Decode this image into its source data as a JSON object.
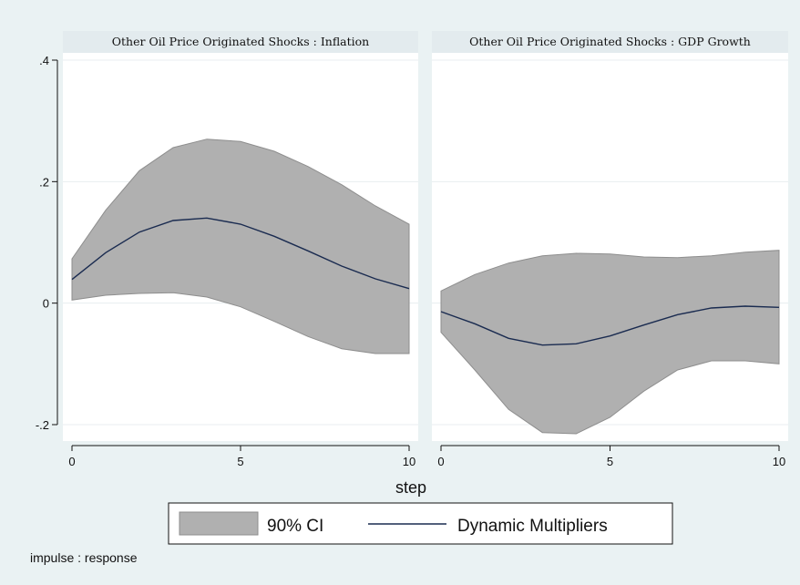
{
  "chart_data": {
    "type": "area",
    "xlabel": "step",
    "ylabel": "",
    "xlim": [
      0,
      10
    ],
    "ylim": [
      -0.22,
      0.41
    ],
    "x_ticks": [
      "0",
      "5",
      "10"
    ],
    "y_ticks": [
      {
        "value": 0.4,
        "label": ".4"
      },
      {
        "value": 0.2,
        "label": ".2"
      },
      {
        "value": 0,
        "label": "0"
      },
      {
        "value": -0.2,
        "label": "-.2"
      }
    ],
    "grid": "horizontal",
    "legend_position": "bottom",
    "note": "impulse : response",
    "colors": {
      "background": "#eaf2f3",
      "plot_background": "#ffffff",
      "ci_fill": "#b0b0b0",
      "ci_stroke": "#8e8e8e",
      "line": "#1a2b50",
      "gridline": "#e8eef0",
      "strip": "#e3ebee"
    },
    "legend": [
      {
        "key": "ci",
        "label": "90% CI"
      },
      {
        "key": "line",
        "label": "Dynamic Multipliers"
      }
    ],
    "panels": [
      {
        "title": "Other Oil Price Originated Shocks : Inflation",
        "x": [
          0,
          1,
          2,
          3,
          4,
          5,
          6,
          7,
          8,
          9,
          10
        ],
        "ci_upper": [
          0.073,
          0.153,
          0.218,
          0.256,
          0.27,
          0.266,
          0.25,
          0.225,
          0.195,
          0.16,
          0.13
        ],
        "ci_lower": [
          0.005,
          0.013,
          0.016,
          0.017,
          0.01,
          -0.006,
          -0.03,
          -0.055,
          -0.075,
          -0.083,
          -0.083
        ],
        "multiplier": [
          0.039,
          0.083,
          0.117,
          0.136,
          0.14,
          0.13,
          0.11,
          0.086,
          0.061,
          0.04,
          0.024
        ]
      },
      {
        "title": "Other Oil Price Originated Shocks : GDP Growth",
        "x": [
          0,
          1,
          2,
          3,
          4,
          5,
          6,
          7,
          8,
          9,
          10
        ],
        "ci_upper": [
          0.02,
          0.047,
          0.066,
          0.078,
          0.082,
          0.081,
          0.076,
          0.075,
          0.078,
          0.084,
          0.087
        ],
        "ci_lower": [
          -0.048,
          -0.11,
          -0.175,
          -0.213,
          -0.215,
          -0.188,
          -0.145,
          -0.11,
          -0.095,
          -0.095,
          -0.1
        ],
        "multiplier": [
          -0.014,
          -0.034,
          -0.058,
          -0.069,
          -0.067,
          -0.054,
          -0.036,
          -0.019,
          -0.008,
          -0.005,
          -0.007
        ]
      }
    ]
  }
}
